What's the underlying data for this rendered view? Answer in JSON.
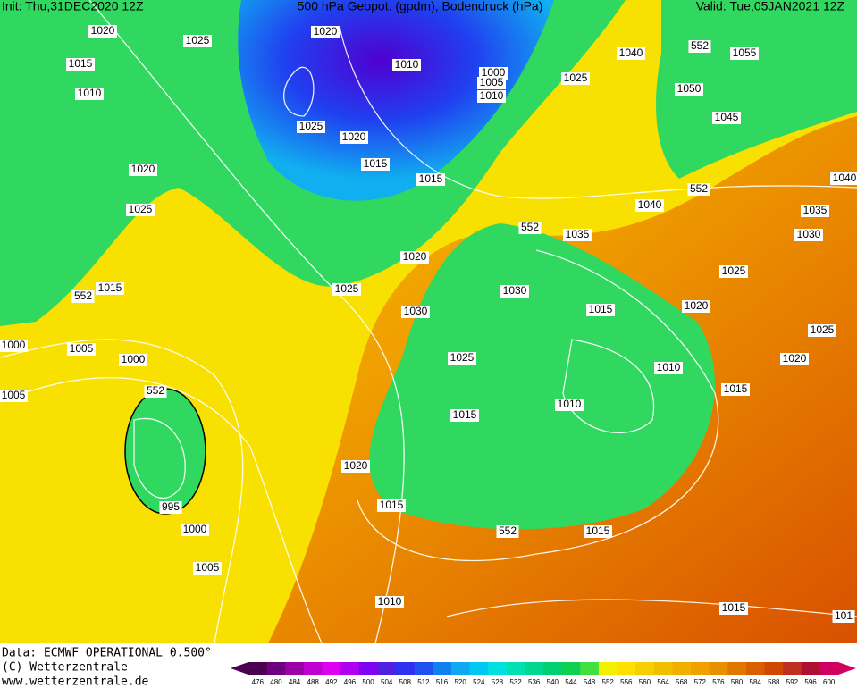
{
  "header": {
    "init": "Init: Thu,31DEC2020 12Z",
    "title": "500 hPa Geopot. (gpdm), Bodendruck (hPa)",
    "valid": "Valid: Tue,05JAN2021 12Z"
  },
  "map": {
    "isobar_labels": [
      "1020",
      "1025",
      "1020",
      "1015",
      "1010",
      "1010",
      "1000",
      "1005",
      "1010",
      "1040",
      "1055",
      "552",
      "1025",
      "1050",
      "1045",
      "1025",
      "1020",
      "1015",
      "1015",
      "1020",
      "552",
      "1040",
      "1040",
      "1025",
      "1035",
      "552",
      "1035",
      "1030",
      "1020",
      "1015",
      "552",
      "1025",
      "1030",
      "1025",
      "1030",
      "1015",
      "1020",
      "1000",
      "1005",
      "1025",
      "1000",
      "1025",
      "1020",
      "1010",
      "552",
      "1015",
      "1005",
      "1010",
      "1015",
      "1020",
      "995",
      "1015",
      "1000",
      "552",
      "1015",
      "1005",
      "1010",
      "1015",
      "101"
    ]
  },
  "footer": {
    "source": "Data: ECMWF OPERATIONAL 0.500°",
    "copyright": "(C) Wetterzentrale",
    "url": "www.wetterzentrale.de"
  },
  "colorbar": {
    "levels": [
      476,
      480,
      484,
      488,
      492,
      496,
      500,
      504,
      508,
      512,
      516,
      520,
      524,
      528,
      532,
      536,
      540,
      544,
      548,
      552,
      556,
      560,
      564,
      568,
      572,
      576,
      580,
      584,
      588,
      592,
      596,
      600
    ],
    "colors": [
      "#4b0050",
      "#6e0080",
      "#9a00a6",
      "#c000d0",
      "#e000f0",
      "#b000f0",
      "#8000f0",
      "#5020e0",
      "#3030f0",
      "#2050f0",
      "#1080f0",
      "#10a8f0",
      "#00c8f0",
      "#00e0e0",
      "#00e0b0",
      "#00d890",
      "#00d070",
      "#10d050",
      "#40e040",
      "#f0f000",
      "#ffe000",
      "#f8d000",
      "#f0c000",
      "#f0b000",
      "#f0a000",
      "#e89000",
      "#e07800",
      "#d86000",
      "#d04800",
      "#c03020",
      "#b01030",
      "#d00060"
    ]
  }
}
